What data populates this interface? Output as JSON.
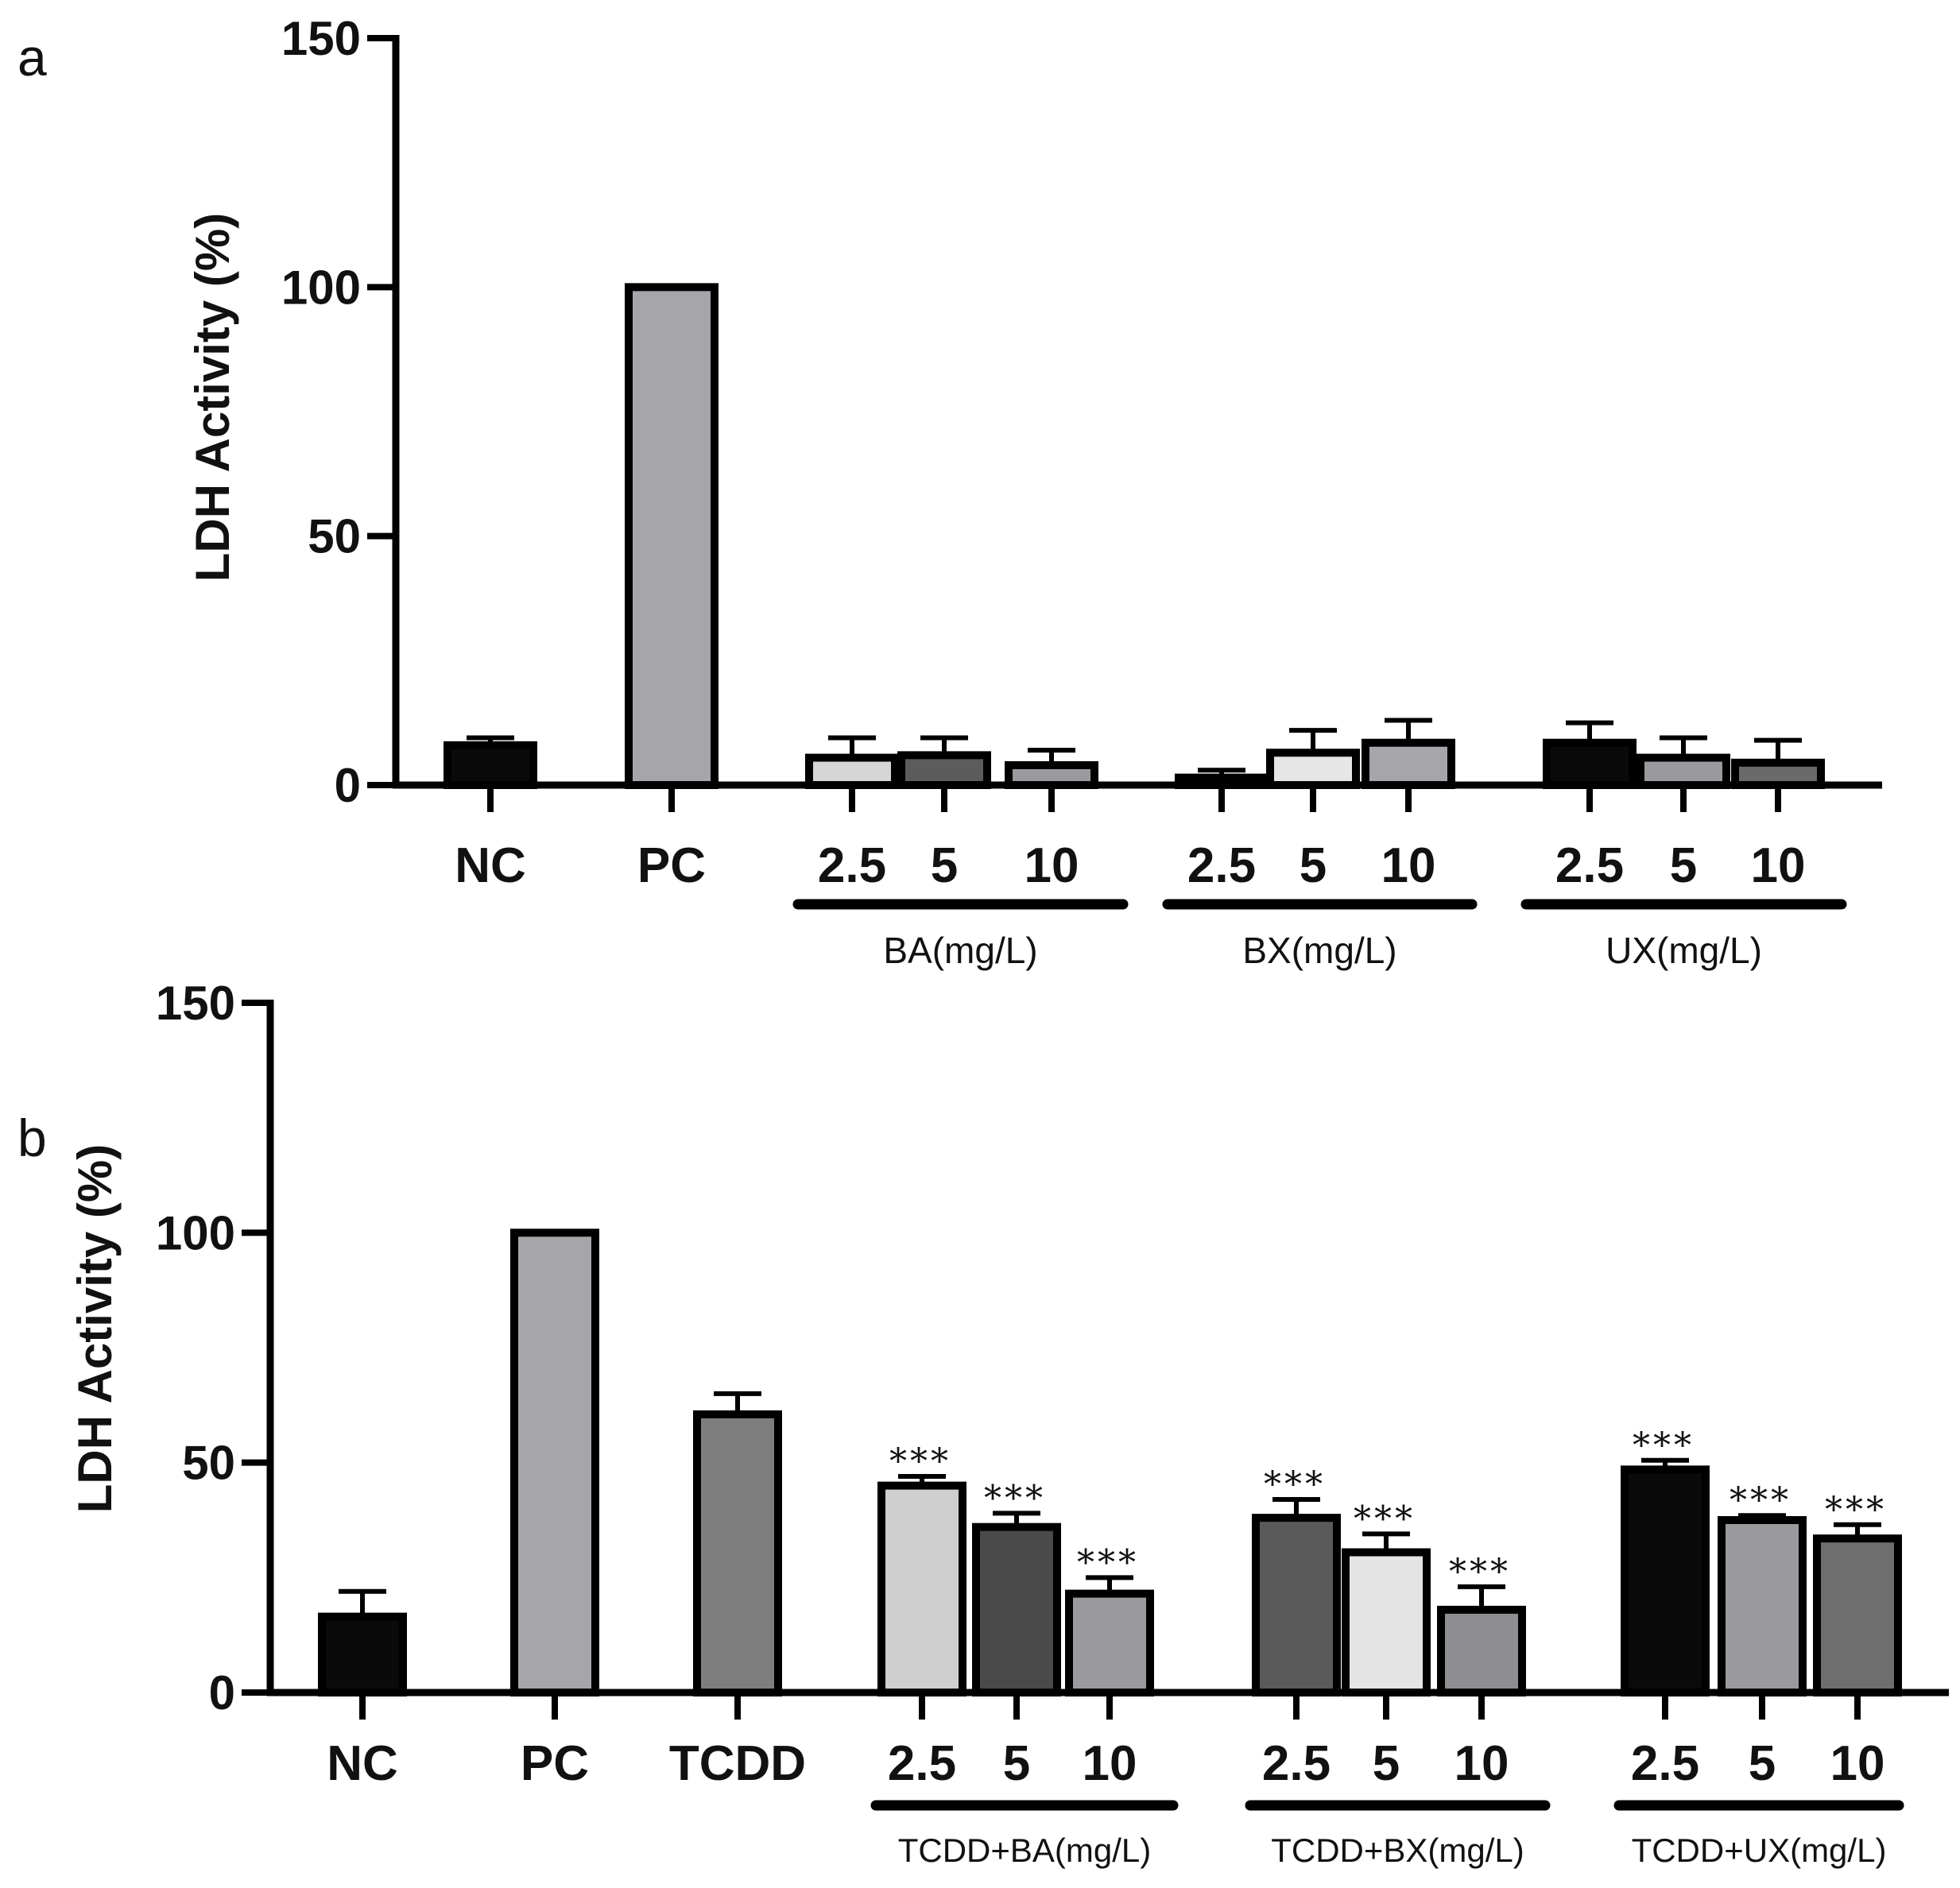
{
  "chart_data": [
    {
      "panel": "a",
      "type": "bar",
      "ylabel": "LDH Activity (%)",
      "ylim": [
        0,
        150
      ],
      "yticks": [
        "0",
        "50",
        "100",
        "150"
      ],
      "categories": [
        "NC",
        "PC",
        "2.5",
        "5",
        "10",
        "2.5",
        "5",
        "10",
        "2.5",
        "5",
        "10"
      ],
      "values": [
        8,
        100,
        5.5,
        6,
        4,
        1.5,
        6.5,
        8.5,
        8.5,
        5.5,
        4.5
      ],
      "errors": [
        1.5,
        0,
        4,
        3.5,
        3,
        1.5,
        4.5,
        4.5,
        4,
        4,
        4.5
      ],
      "fills": [
        "#0a0a0a",
        "#a6a6aa",
        "#d6d6d6",
        "#5c5c5c",
        "#9a9a9e",
        "#5c5c5c",
        "#e6e6e6",
        "#a6a6aa",
        "#0a0a0a",
        "#9a9a9e",
        "#6a6a6a"
      ],
      "groups": [
        {
          "label": "BA(mg/L)",
          "members": [
            2,
            3,
            4
          ]
        },
        {
          "label": "BX(mg/L)",
          "members": [
            5,
            6,
            7
          ]
        },
        {
          "label": "UX(mg/L)",
          "members": [
            8,
            9,
            10
          ]
        }
      ]
    },
    {
      "panel": "b",
      "type": "bar",
      "ylabel": "LDH Activity (%)",
      "ylim": [
        0,
        150
      ],
      "yticks": [
        "0",
        "50",
        "100",
        "150"
      ],
      "categories": [
        "NC",
        "PC",
        "TCDD",
        "2.5",
        "5",
        "10",
        "2.5",
        "5",
        "10",
        "2.5",
        "5",
        "10"
      ],
      "values": [
        16.5,
        100,
        60.5,
        45,
        36,
        21.5,
        38,
        30.5,
        18,
        48.5,
        37.5,
        33.5
      ],
      "errors": [
        5.5,
        0,
        4.5,
        2,
        3,
        3.5,
        4,
        4,
        5,
        2,
        1,
        3
      ],
      "significance": [
        "",
        "",
        "",
        "***",
        "***",
        "***",
        "***",
        "***",
        "***",
        "***",
        "***",
        "***"
      ],
      "fills": [
        "#0a0a0a",
        "#a6a6aa",
        "#7e7e7e",
        "#cfcfcf",
        "#4a4a4a",
        "#9a9a9e",
        "#5a5a5a",
        "#e4e4e4",
        "#8e8e92",
        "#0a0a0a",
        "#9a9a9e",
        "#6e6e6e"
      ],
      "groups": [
        {
          "label": "TCDD+BA(mg/L)",
          "members": [
            3,
            4,
            5
          ]
        },
        {
          "label": "TCDD+BX(mg/L)",
          "members": [
            6,
            7,
            8
          ]
        },
        {
          "label": "TCDD+UX(mg/L)",
          "members": [
            9,
            10,
            11
          ]
        }
      ]
    }
  ]
}
